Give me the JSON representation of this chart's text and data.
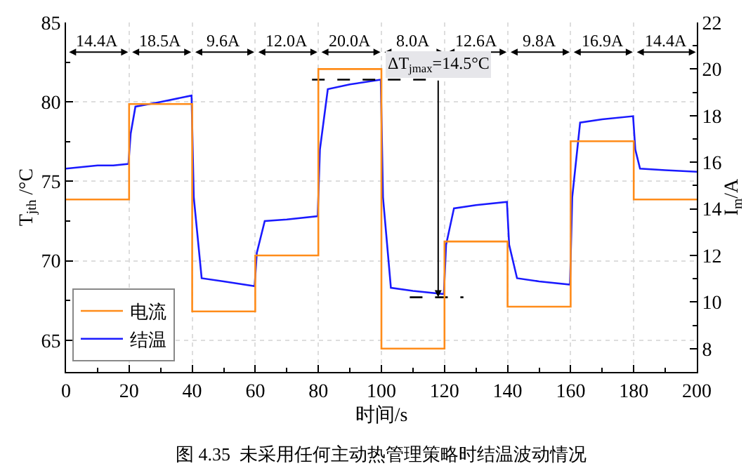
{
  "chart_data": {
    "type": "line",
    "xlabel": "时间/s",
    "ylabel": "T$_{jth}$ /°C",
    "y2label": "I$_{m}$/A",
    "xlim": [
      0,
      200
    ],
    "xticks": [
      0,
      20,
      40,
      60,
      80,
      100,
      120,
      140,
      160,
      180,
      200
    ],
    "ylim": [
      63,
      85
    ],
    "yticks": [
      65,
      70,
      75,
      80,
      85
    ],
    "y2lim": [
      7,
      22
    ],
    "y2ticks": [
      8,
      10,
      12,
      14,
      16,
      18,
      20,
      22
    ],
    "grid": true,
    "legend": "bottom left",
    "series": [
      {
        "name": "电流",
        "type": "step",
        "axis": "y2",
        "color": "#ff8c1a",
        "x": [
          0,
          20,
          40,
          60,
          80,
          100,
          120,
          140,
          160,
          180,
          200
        ],
        "values": [
          14.4,
          18.5,
          9.6,
          12.0,
          20.0,
          8.0,
          12.6,
          9.8,
          16.9,
          14.4,
          14.4
        ]
      },
      {
        "name": "结温",
        "color": "#1a1aff",
        "x": [
          0,
          5,
          10,
          15,
          19.8,
          20.5,
          22,
          30,
          39.8,
          40.5,
          43,
          50,
          59.8,
          60.5,
          63,
          70,
          79.8,
          80.5,
          83,
          90,
          99.8,
          100.5,
          103,
          110,
          119.8,
          120.5,
          123,
          130,
          139.8,
          140.5,
          143,
          150,
          159.8,
          160.5,
          163,
          170,
          179.8,
          180.5,
          182,
          190,
          200
        ],
        "values": [
          75.8,
          75.9,
          76.0,
          76.0,
          76.1,
          78.0,
          79.7,
          80.0,
          80.4,
          74.0,
          68.9,
          68.7,
          68.4,
          70.5,
          72.5,
          72.6,
          72.8,
          77.0,
          80.8,
          81.1,
          81.4,
          74.0,
          68.3,
          68.1,
          67.9,
          71.0,
          73.3,
          73.5,
          73.7,
          71.0,
          68.9,
          68.7,
          68.5,
          74.0,
          78.7,
          78.9,
          79.1,
          77.0,
          75.8,
          75.7,
          75.6
        ]
      },
      {
        "line_style": "dashed",
        "color": "#000000",
        "x": [
          78,
          118
        ],
        "values": [
          81.4,
          81.4
        ]
      },
      {
        "line_style": "dashed",
        "color": "#000000",
        "x": [
          109,
          126
        ],
        "values": [
          67.7,
          67.7
        ]
      }
    ],
    "annotations": [
      "14.4A",
      "18.5A",
      "9.6A",
      "12.0A",
      "20.0A",
      "8.0A",
      "12.6A",
      "9.8A",
      "16.9A",
      "14.4A",
      {
        "text": "ΔT$_{jmax}$=14.5°C",
        "x": 118,
        "y": 67.7
      },
      "图 4.35  未采用任何主动热管理策略时结温波动情况"
    ]
  }
}
